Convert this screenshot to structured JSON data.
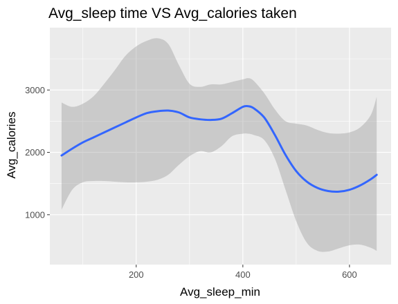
{
  "chart_data": {
    "type": "line",
    "title": "Avg_sleep time VS Avg_calories taken",
    "xlabel": "Avg_sleep_min",
    "ylabel": "Avg_calories",
    "xlim": [
      38,
      678
    ],
    "ylim": [
      200,
      4000
    ],
    "x_ticks": [
      200,
      400,
      600
    ],
    "x_minor_ticks": [
      100,
      300,
      500
    ],
    "y_ticks": [
      1000,
      2000,
      3000
    ],
    "y_minor_ticks": [
      1500,
      2500,
      3500
    ],
    "grid": true,
    "background": "#ebebeb",
    "line_color": "#3366ff",
    "band_color": "#999999",
    "series": [
      {
        "x": [
          60,
          80,
          100,
          120,
          140,
          160,
          180,
          200,
          220,
          240,
          260,
          280,
          300,
          320,
          340,
          360,
          380,
          400,
          410,
          420,
          440,
          460,
          480,
          500,
          520,
          540,
          560,
          580,
          600,
          620,
          640,
          651
        ],
        "y": [
          1950,
          2060,
          2160,
          2240,
          2320,
          2400,
          2480,
          2560,
          2630,
          2660,
          2670,
          2640,
          2560,
          2530,
          2520,
          2540,
          2630,
          2730,
          2740,
          2710,
          2560,
          2280,
          1960,
          1700,
          1530,
          1430,
          1380,
          1370,
          1400,
          1470,
          1570,
          1640
        ],
        "lower": [
          1080,
          1400,
          1520,
          1540,
          1540,
          1530,
          1520,
          1520,
          1530,
          1560,
          1640,
          1800,
          1940,
          2020,
          2000,
          2100,
          2260,
          2300,
          2300,
          2280,
          2200,
          1900,
          1400,
          900,
          550,
          420,
          410,
          460,
          510,
          520,
          470,
          420
        ],
        "upper": [
          2800,
          2730,
          2780,
          2900,
          3100,
          3320,
          3550,
          3700,
          3790,
          3830,
          3740,
          3400,
          3100,
          3050,
          3090,
          3090,
          3130,
          3170,
          3190,
          3150,
          2950,
          2690,
          2500,
          2460,
          2430,
          2360,
          2310,
          2300,
          2320,
          2400,
          2600,
          2890
        ]
      }
    ]
  }
}
